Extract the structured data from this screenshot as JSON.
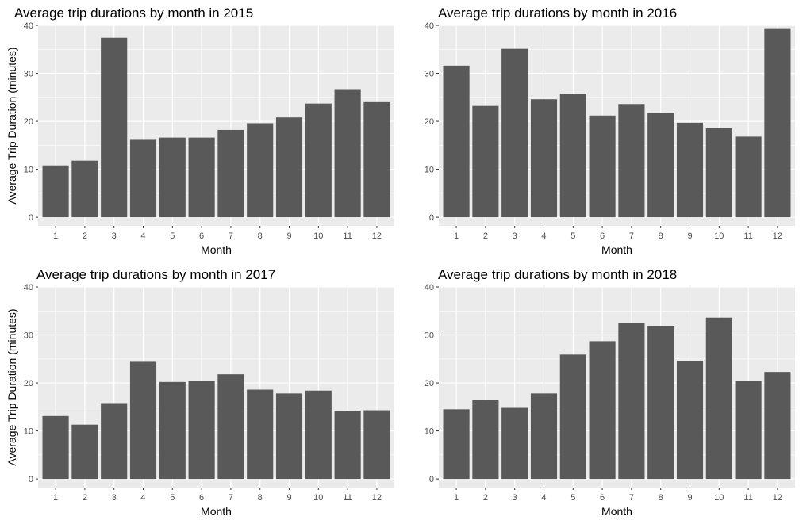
{
  "colors": {
    "panel_bg": "#ebebeb",
    "grid": "#ffffff",
    "bar": "#595959",
    "text": "#000000",
    "tick": "#4d4d4d"
  },
  "chart_data": [
    {
      "type": "bar",
      "title": "Average trip durations by month in 2015",
      "xlabel": "Month",
      "ylabel": "Average Trip Duration (minutes)",
      "categories": [
        "1",
        "2",
        "3",
        "4",
        "5",
        "6",
        "7",
        "8",
        "9",
        "10",
        "11",
        "12"
      ],
      "values": [
        10.8,
        11.8,
        37.4,
        16.3,
        16.6,
        16.6,
        18.2,
        19.6,
        20.8,
        23.7,
        26.7,
        24.0
      ],
      "ylim": [
        0,
        40
      ],
      "yticks": [
        0,
        10,
        20,
        30,
        40
      ],
      "grid": true
    },
    {
      "type": "bar",
      "title": "Average trip durations by month in 2016",
      "xlabel": "Month",
      "ylabel": "",
      "categories": [
        "1",
        "2",
        "3",
        "4",
        "5",
        "6",
        "7",
        "8",
        "9",
        "10",
        "11",
        "12"
      ],
      "values": [
        31.6,
        23.2,
        35.1,
        24.6,
        25.7,
        21.2,
        23.6,
        21.8,
        19.7,
        18.6,
        16.8,
        39.4
      ],
      "ylim": [
        0,
        40
      ],
      "yticks": [
        0,
        10,
        20,
        30,
        40
      ],
      "grid": true
    },
    {
      "type": "bar",
      "title": "Average trip durations by month in 2017",
      "xlabel": "Month",
      "ylabel": "Average Trip Duration (minutes)",
      "categories": [
        "1",
        "2",
        "3",
        "4",
        "5",
        "6",
        "7",
        "8",
        "9",
        "10",
        "11",
        "12"
      ],
      "values": [
        13.1,
        11.3,
        15.8,
        24.4,
        20.2,
        20.5,
        21.8,
        18.6,
        17.8,
        18.4,
        14.2,
        14.3
      ],
      "ylim": [
        0,
        40
      ],
      "yticks": [
        0,
        10,
        20,
        30,
        40
      ],
      "grid": true
    },
    {
      "type": "bar",
      "title": "Average trip durations by month in 2018",
      "xlabel": "Month",
      "ylabel": "",
      "categories": [
        "1",
        "2",
        "3",
        "4",
        "5",
        "6",
        "7",
        "8",
        "9",
        "10",
        "11",
        "12"
      ],
      "values": [
        14.5,
        16.4,
        14.8,
        17.8,
        25.9,
        28.7,
        32.4,
        31.9,
        24.6,
        33.6,
        20.5,
        22.3
      ],
      "ylim": [
        0,
        40
      ],
      "yticks": [
        0,
        10,
        20,
        30,
        40
      ],
      "grid": true
    }
  ]
}
